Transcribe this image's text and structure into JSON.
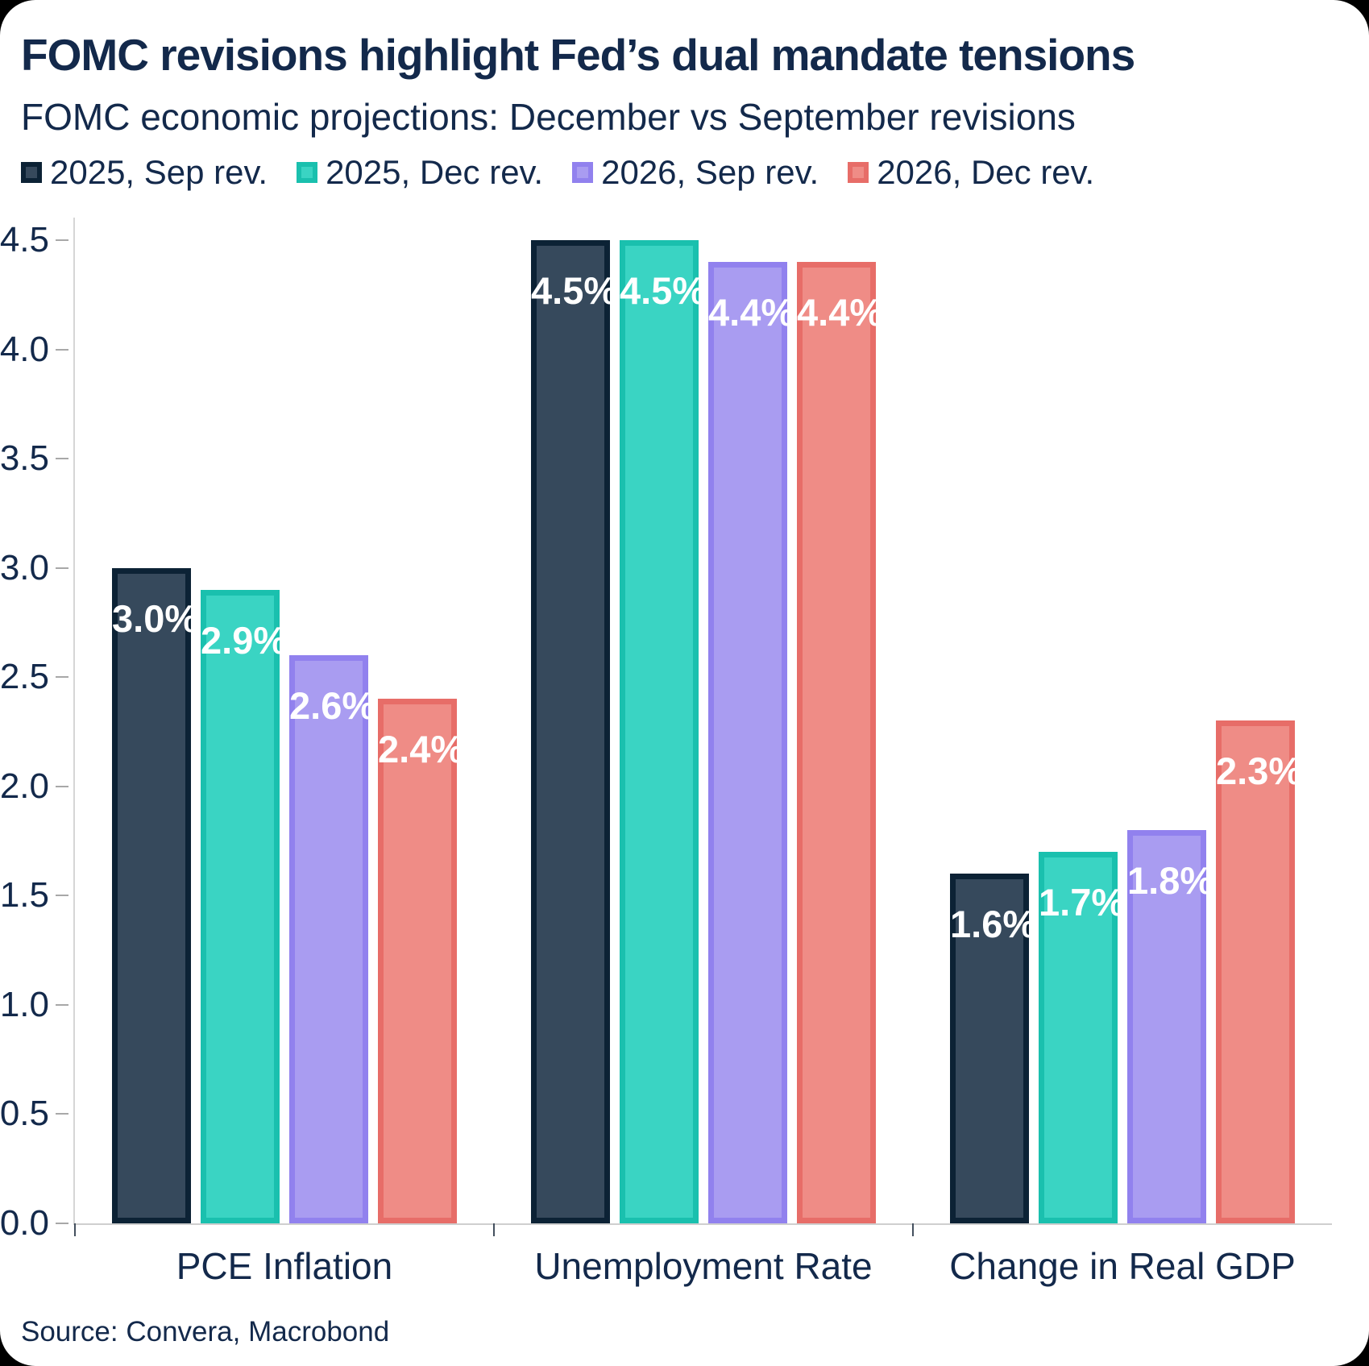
{
  "header": {
    "title": "FOMC revisions highlight Fed’s dual mandate tensions",
    "subtitle": "FOMC economic projections: December vs September revisions"
  },
  "source": "Source: Convera, Macrobond",
  "colors": {
    "text": "#13294b",
    "axis_line": "#d6d6d6",
    "y_tick": "#a8a8a8",
    "x_tick": "#44505e",
    "value_label": "#ffffff"
  },
  "chart_data": {
    "type": "bar",
    "categories": [
      "PCE Inflation",
      "Unemployment Rate",
      "Change in Real GDP"
    ],
    "series": [
      {
        "name": "2025, Sep rev.",
        "values": [
          3.0,
          4.5,
          1.6
        ],
        "labels": [
          "3.0%",
          "4.5%",
          "1.6%"
        ],
        "fill": "#36495c",
        "border": "#0c2235"
      },
      {
        "name": "2025, Dec rev.",
        "values": [
          2.9,
          4.5,
          1.7
        ],
        "labels": [
          "2.9%",
          "4.5%",
          "1.7%"
        ],
        "fill": "#3ad4c3",
        "border": "#1ac0ae"
      },
      {
        "name": "2026, Sep rev.",
        "values": [
          2.6,
          4.4,
          1.8
        ],
        "labels": [
          "2.6%",
          "4.4%",
          "1.8%"
        ],
        "fill": "#a99cf1",
        "border": "#9181ee"
      },
      {
        "name": "2026, Dec rev.",
        "values": [
          2.4,
          4.4,
          2.3
        ],
        "labels": [
          "2.4%",
          "4.4%",
          "2.3%"
        ],
        "fill": "#ef8c86",
        "border": "#e76d68"
      }
    ],
    "ylim": [
      0,
      4.5
    ],
    "yticks": [
      "0.0",
      "0.5",
      "1.0",
      "1.5",
      "2.0",
      "2.5",
      "3.0",
      "3.5",
      "4.0",
      "4.5"
    ],
    "legend_position": "top",
    "grid": false,
    "value_labels": "inside-top"
  }
}
